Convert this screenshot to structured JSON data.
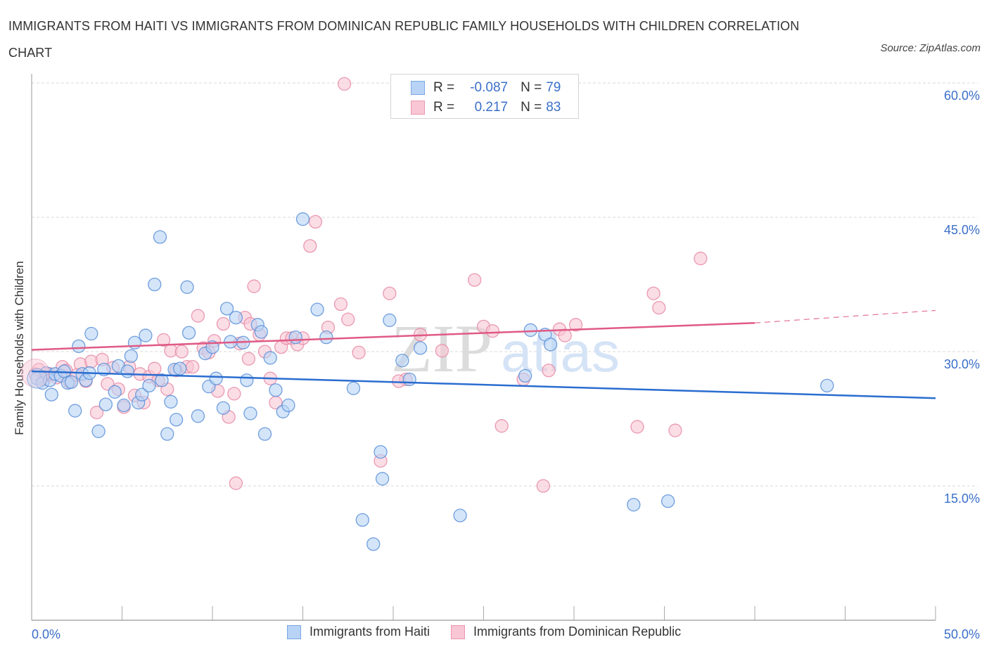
{
  "header": {
    "title": "IMMIGRANTS FROM HAITI VS IMMIGRANTS FROM DOMINICAN REPUBLIC FAMILY HOUSEHOLDS WITH CHILDREN CORRELATION CHART",
    "source": "Source: ZipAtlas.com"
  },
  "stats_legend": {
    "rows": [
      {
        "r_label": "R =",
        "r_value": "-0.087",
        "n_label": "N =",
        "n_value": "79"
      },
      {
        "r_label": "R =",
        "r_value": "0.217",
        "n_label": "N =",
        "n_value": "83"
      }
    ]
  },
  "colors": {
    "haiti_fill": "#b8d3f5",
    "haiti_stroke": "#5b8fd8",
    "haiti_line": "#2a6dd0",
    "dr_fill": "#f8c6d4",
    "dr_stroke": "#e68aa6",
    "dr_line": "#e05a85",
    "tick_label": "#3a6fc9",
    "grid": "#d9d9d9"
  },
  "watermark": {
    "part1": "ZIP",
    "part2": "atlas"
  },
  "chart_data": {
    "type": "scatter",
    "title": "Immigrants from Haiti vs Immigrants from Dominican Republic Family Households with Children Correlation Chart",
    "xlabel": "",
    "ylabel": "Family Households with Children",
    "xlim": [
      0,
      50
    ],
    "ylim": [
      0,
      62
    ],
    "x_tick_labels": [
      "0.0%",
      "50.0%"
    ],
    "x_ticks_minor": [
      0,
      5,
      10,
      15,
      20,
      25,
      30,
      35,
      40,
      45,
      50
    ],
    "y_ticks": [
      15,
      30,
      45,
      60
    ],
    "y_tick_labels": [
      "15.0%",
      "30.0%",
      "45.0%",
      "60.0%"
    ],
    "grid": true,
    "legend_placement": "bottom-center",
    "series": [
      {
        "name": "Immigrants from Haiti",
        "R": -0.087,
        "N": 79,
        "trend": {
          "x": [
            0,
            50
          ],
          "y": [
            27.8,
            24.8
          ],
          "style": "solid"
        },
        "points": [
          [
            0.3,
            27.0
          ],
          [
            0.6,
            26.5
          ],
          [
            0.8,
            27.6
          ],
          [
            1.0,
            26.8
          ],
          [
            1.1,
            25.2
          ],
          [
            1.3,
            27.5
          ],
          [
            1.6,
            27.3
          ],
          [
            1.8,
            27.8
          ],
          [
            2.0,
            26.5
          ],
          [
            2.2,
            26.6
          ],
          [
            2.4,
            23.4
          ],
          [
            2.6,
            30.6
          ],
          [
            2.8,
            27.5
          ],
          [
            3.0,
            26.8
          ],
          [
            3.2,
            27.6
          ],
          [
            3.3,
            32.0
          ],
          [
            3.7,
            21.1
          ],
          [
            4.0,
            28.0
          ],
          [
            4.1,
            24.1
          ],
          [
            4.6,
            25.5
          ],
          [
            4.8,
            28.4
          ],
          [
            5.1,
            24.0
          ],
          [
            5.3,
            27.8
          ],
          [
            5.5,
            29.5
          ],
          [
            5.7,
            31.0
          ],
          [
            5.9,
            24.3
          ],
          [
            6.1,
            25.2
          ],
          [
            6.3,
            31.8
          ],
          [
            6.5,
            26.2
          ],
          [
            6.8,
            37.5
          ],
          [
            7.1,
            42.8
          ],
          [
            7.2,
            26.8
          ],
          [
            7.5,
            20.8
          ],
          [
            7.7,
            24.4
          ],
          [
            7.9,
            28.0
          ],
          [
            8.0,
            22.4
          ],
          [
            8.2,
            28.1
          ],
          [
            8.6,
            37.2
          ],
          [
            8.7,
            32.1
          ],
          [
            9.2,
            22.8
          ],
          [
            9.6,
            29.8
          ],
          [
            9.8,
            26.1
          ],
          [
            10.0,
            30.5
          ],
          [
            10.2,
            27.0
          ],
          [
            10.6,
            23.7
          ],
          [
            10.8,
            34.8
          ],
          [
            11.0,
            31.1
          ],
          [
            11.3,
            33.8
          ],
          [
            11.7,
            31.0
          ],
          [
            11.9,
            26.8
          ],
          [
            12.1,
            23.1
          ],
          [
            12.5,
            33.0
          ],
          [
            12.7,
            32.2
          ],
          [
            12.9,
            20.8
          ],
          [
            13.2,
            29.3
          ],
          [
            13.5,
            25.7
          ],
          [
            13.9,
            23.3
          ],
          [
            14.2,
            24.0
          ],
          [
            14.6,
            31.6
          ],
          [
            15.0,
            44.8
          ],
          [
            15.8,
            34.7
          ],
          [
            16.3,
            31.6
          ],
          [
            17.8,
            25.9
          ],
          [
            18.3,
            11.2
          ],
          [
            18.9,
            8.5
          ],
          [
            19.3,
            18.8
          ],
          [
            19.4,
            15.8
          ],
          [
            19.8,
            33.5
          ],
          [
            20.5,
            29.0
          ],
          [
            20.9,
            26.9
          ],
          [
            21.5,
            30.4
          ],
          [
            23.7,
            11.7
          ],
          [
            27.3,
            27.3
          ],
          [
            27.6,
            32.4
          ],
          [
            28.4,
            31.9
          ],
          [
            28.7,
            30.8
          ],
          [
            33.3,
            12.9
          ],
          [
            35.2,
            13.3
          ],
          [
            44.0,
            26.2
          ]
        ]
      },
      {
        "name": "Immigrants from Dominican Republic",
        "R": 0.217,
        "N": 83,
        "trend": {
          "x": [
            0,
            40,
            50
          ],
          "y": [
            30.2,
            33.2,
            34.6
          ],
          "style": "solid-then-dashed",
          "solid_until": 40
        },
        "points": [
          [
            0.2,
            27.5
          ],
          [
            0.4,
            28.0
          ],
          [
            0.7,
            26.9
          ],
          [
            1.0,
            27.5
          ],
          [
            1.4,
            27.1
          ],
          [
            1.7,
            28.3
          ],
          [
            1.9,
            27.9
          ],
          [
            2.1,
            26.6
          ],
          [
            2.5,
            27.4
          ],
          [
            2.7,
            28.6
          ],
          [
            3.0,
            26.7
          ],
          [
            3.3,
            28.9
          ],
          [
            3.6,
            23.2
          ],
          [
            3.9,
            29.1
          ],
          [
            4.2,
            26.4
          ],
          [
            4.5,
            28.2
          ],
          [
            4.8,
            25.8
          ],
          [
            5.1,
            23.8
          ],
          [
            5.4,
            28.3
          ],
          [
            5.7,
            25.1
          ],
          [
            6.0,
            27.5
          ],
          [
            6.2,
            24.3
          ],
          [
            6.5,
            27.2
          ],
          [
            6.8,
            28.1
          ],
          [
            7.0,
            26.8
          ],
          [
            7.3,
            31.3
          ],
          [
            7.5,
            25.8
          ],
          [
            7.7,
            30.1
          ],
          [
            8.0,
            27.9
          ],
          [
            8.3,
            30.0
          ],
          [
            8.6,
            28.3
          ],
          [
            8.9,
            28.3
          ],
          [
            9.2,
            34.0
          ],
          [
            9.5,
            30.4
          ],
          [
            9.8,
            29.9
          ],
          [
            10.1,
            31.2
          ],
          [
            10.3,
            25.6
          ],
          [
            10.6,
            33.1
          ],
          [
            10.9,
            22.7
          ],
          [
            11.2,
            25.3
          ],
          [
            11.5,
            30.9
          ],
          [
            11.8,
            33.8
          ],
          [
            12.1,
            33.1
          ],
          [
            12.3,
            37.3
          ],
          [
            12.6,
            31.9
          ],
          [
            12.9,
            30.0
          ],
          [
            13.2,
            27.0
          ],
          [
            13.5,
            24.3
          ],
          [
            13.8,
            30.5
          ],
          [
            14.1,
            31.5
          ],
          [
            14.4,
            31.5
          ],
          [
            14.7,
            30.8
          ],
          [
            15.0,
            31.5
          ],
          [
            15.4,
            41.8
          ],
          [
            15.7,
            44.5
          ],
          [
            16.4,
            32.7
          ],
          [
            17.1,
            35.3
          ],
          [
            17.5,
            33.6
          ],
          [
            18.1,
            29.9
          ],
          [
            19.3,
            17.8
          ],
          [
            19.8,
            36.5
          ],
          [
            20.7,
            26.9
          ],
          [
            21.5,
            31.9
          ],
          [
            22.7,
            30.1
          ],
          [
            24.5,
            38.0
          ],
          [
            25.0,
            32.8
          ],
          [
            25.5,
            32.3
          ],
          [
            26.0,
            21.7
          ],
          [
            27.2,
            26.9
          ],
          [
            28.3,
            15.0
          ],
          [
            28.6,
            27.9
          ],
          [
            29.2,
            32.5
          ],
          [
            29.5,
            31.8
          ],
          [
            30.1,
            33.0
          ],
          [
            33.5,
            21.6
          ],
          [
            34.4,
            36.5
          ],
          [
            34.7,
            34.9
          ],
          [
            35.6,
            21.2
          ],
          [
            37.0,
            40.4
          ],
          [
            17.3,
            59.9
          ],
          [
            11.3,
            15.3
          ],
          [
            12.0,
            29.2
          ],
          [
            20.3,
            26.7
          ]
        ]
      }
    ]
  },
  "bottom_legend": {
    "items": [
      {
        "label": "Immigrants from Haiti"
      },
      {
        "label": "Immigrants from Dominican Republic"
      }
    ]
  }
}
